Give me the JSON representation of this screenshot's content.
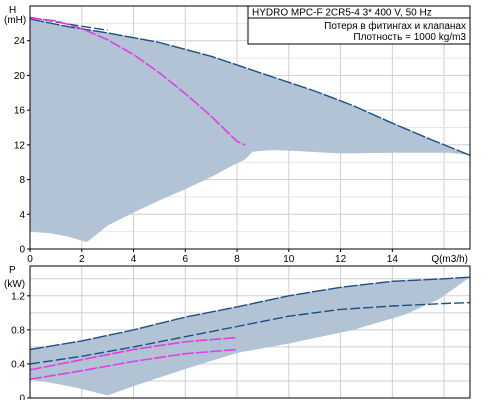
{
  "chart_data": [
    {
      "type": "area",
      "panel": "head",
      "title_lines": [
        "HYDRO MPC-F 2CR5-4    3* 400 V, 50 Hz",
        "Потеря в фитингах и клапанах",
        "Плотность = 1000 kg/m3"
      ],
      "xlabel": "Q(m3/h)",
      "ylabel_sym": "H",
      "ylabel_unit": "(mH)",
      "xlim": [
        0,
        17
      ],
      "ylim": [
        0,
        28
      ],
      "x_ticks": [
        0,
        2,
        4,
        6,
        8,
        10,
        12,
        14
      ],
      "y_ticks": [
        0,
        4,
        8,
        12,
        16,
        20,
        24
      ],
      "grid": true,
      "colors": {
        "envelope": "#b2c3d6",
        "edge": "#1c4f84",
        "loss": "#e040e0",
        "grid": "#cfcfcf"
      },
      "envelope_polygon": [
        [
          0,
          26.5
        ],
        [
          0.6,
          26.2
        ],
        [
          1.5,
          25.6
        ],
        [
          3,
          24.9
        ],
        [
          5,
          23.8
        ],
        [
          7,
          22.2
        ],
        [
          9,
          20.2
        ],
        [
          11,
          18.2
        ],
        [
          12.5,
          16.5
        ],
        [
          14,
          14.5
        ],
        [
          15.5,
          12.6
        ],
        [
          17,
          10.8
        ],
        [
          16.2,
          11.1
        ],
        [
          14,
          11.1
        ],
        [
          12,
          11.0
        ],
        [
          10.2,
          11.3
        ],
        [
          9.3,
          11.4
        ],
        [
          8.6,
          11.2
        ],
        [
          8.3,
          10.3
        ],
        [
          7.8,
          9.6
        ],
        [
          7,
          8.3
        ],
        [
          6,
          6.9
        ],
        [
          5,
          5.6
        ],
        [
          4,
          4.2
        ],
        [
          3,
          2.7
        ],
        [
          2.2,
          0.8
        ],
        [
          1.5,
          1.4
        ],
        [
          0.8,
          1.8
        ],
        [
          0,
          2.0
        ]
      ],
      "edge_lines": [
        [
          [
            0,
            26.5
          ],
          [
            1.5,
            25.6
          ],
          [
            3,
            24.9
          ],
          [
            5,
            23.8
          ],
          [
            7,
            22.2
          ],
          [
            9,
            20.2
          ],
          [
            11,
            18.2
          ],
          [
            12.5,
            16.5
          ],
          [
            14,
            14.5
          ],
          [
            15.5,
            12.6
          ],
          [
            17,
            10.8
          ]
        ],
        [
          [
            0,
            26.7
          ],
          [
            1.5,
            25.9
          ],
          [
            3,
            25.2
          ]
        ]
      ],
      "loss_curve": [
        [
          0,
          26.6
        ],
        [
          1,
          26.3
        ],
        [
          2,
          25.4
        ],
        [
          3,
          24.1
        ],
        [
          4,
          22.4
        ],
        [
          5,
          20.3
        ],
        [
          6,
          17.9
        ],
        [
          7,
          15.3
        ],
        [
          8,
          12.4
        ],
        [
          8.3,
          12
        ]
      ]
    },
    {
      "type": "area",
      "panel": "power",
      "xlabel": "",
      "ylabel_sym": "P",
      "ylabel_unit": "(kW)",
      "xlim": [
        0,
        17
      ],
      "ylim": [
        0,
        1.55
      ],
      "y_ticks": [
        0,
        0.4,
        0.8,
        1.2
      ],
      "grid": true,
      "colors": {
        "envelope": "#b2c3d6",
        "edge": "#1c4f84",
        "loss": "#e040e0",
        "grid": "#cfcfcf"
      },
      "envelope_polygon": [
        [
          0,
          0.57
        ],
        [
          2,
          0.67
        ],
        [
          4,
          0.8
        ],
        [
          6,
          0.95
        ],
        [
          8,
          1.07
        ],
        [
          10,
          1.2
        ],
        [
          12,
          1.3
        ],
        [
          14,
          1.37
        ],
        [
          16,
          1.4
        ],
        [
          17,
          1.42
        ],
        [
          15.8,
          1.16
        ],
        [
          14.5,
          0.98
        ],
        [
          12.5,
          0.8
        ],
        [
          10,
          0.64
        ],
        [
          8,
          0.53
        ],
        [
          6,
          0.34
        ],
        [
          4,
          0.14
        ],
        [
          3,
          0.03
        ],
        [
          1.8,
          0.12
        ],
        [
          0.8,
          0.18
        ],
        [
          0,
          0.22
        ]
      ],
      "edge_lines": [
        [
          [
            0,
            0.57
          ],
          [
            2,
            0.67
          ],
          [
            4,
            0.8
          ],
          [
            6,
            0.95
          ],
          [
            8,
            1.07
          ],
          [
            10,
            1.2
          ],
          [
            12,
            1.3
          ],
          [
            14,
            1.37
          ],
          [
            16,
            1.4
          ],
          [
            17,
            1.42
          ]
        ],
        [
          [
            0,
            0.4
          ],
          [
            2,
            0.49
          ],
          [
            4,
            0.6
          ],
          [
            6,
            0.72
          ],
          [
            8,
            0.84
          ],
          [
            10,
            0.96
          ],
          [
            12,
            1.04
          ],
          [
            14,
            1.08
          ],
          [
            16,
            1.11
          ],
          [
            17,
            1.12
          ]
        ]
      ],
      "loss_curves": [
        [
          [
            0,
            0.33
          ],
          [
            2,
            0.45
          ],
          [
            4,
            0.57
          ],
          [
            6,
            0.66
          ],
          [
            8,
            0.71
          ]
        ],
        [
          [
            0,
            0.22
          ],
          [
            2,
            0.32
          ],
          [
            4,
            0.43
          ],
          [
            6,
            0.52
          ],
          [
            8,
            0.57
          ]
        ]
      ]
    }
  ]
}
